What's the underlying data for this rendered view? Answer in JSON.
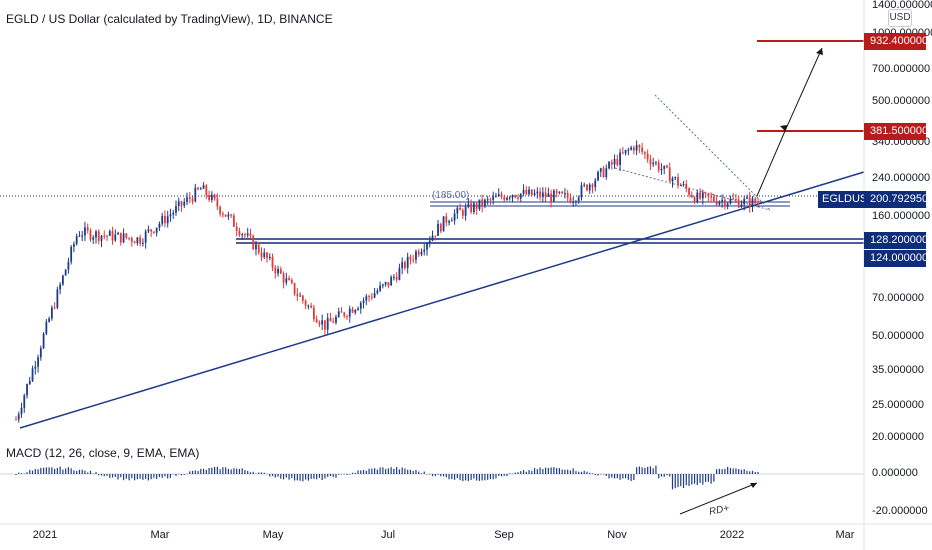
{
  "header": {
    "title": "EGLD / US Dollar (calculated by TradingView), 1D, BINANCE"
  },
  "macd": {
    "title": "MACD (12, 26, close, 9, EMA, EMA)"
  },
  "price_axis": {
    "currency_label": "USD",
    "ticks": [
      "1400.000000",
      "1000.000000",
      "700.000000",
      "500.000000",
      "340.000000",
      "240.000000",
      "160.000000",
      "70.000000",
      "50.000000",
      "35.000000",
      "25.000000",
      "20.000000",
      "0.000000",
      "-20.000000"
    ]
  },
  "labels": {
    "target_high": "932.400000",
    "target_mid": "381.500000",
    "symbol": "EGLDUSD",
    "current_price": "200.792950",
    "support_high": "128.200000",
    "support_low": "124.000000"
  },
  "annotations": {
    "rect_note": "(185.00)",
    "divergence_note": "RD+"
  },
  "time_axis": {
    "ticks": [
      "2021",
      "Mar",
      "May",
      "Jul",
      "Sep",
      "Nov",
      "2022",
      "Mar"
    ]
  },
  "colors": {
    "up_candle": "#1e3a8a",
    "down_candle": "#e53935",
    "trend_line": "#1e3a8a",
    "target_line": "#b71c1c",
    "support_line": "#0d2c7a"
  },
  "chart_data": {
    "type": "candlestick",
    "symbol": "EGLDUSD",
    "timeframe": "1D",
    "exchange": "BINANCE",
    "scale": "log",
    "x": [
      "2021-01",
      "2021-02",
      "2021-03",
      "2021-04",
      "2021-05",
      "2021-06",
      "2021-07",
      "2021-08",
      "2021-09",
      "2021-10",
      "2021-11",
      "2021-12",
      "2022-01"
    ],
    "close_estimate": [
      24,
      150,
      140,
      230,
      120,
      60,
      90,
      175,
      220,
      210,
      350,
      210,
      200
    ],
    "levels": [
      932.4,
      381.5,
      200.79295,
      128.2,
      124.0
    ],
    "ylim": [
      20,
      1400
    ],
    "macd_ylim": [
      -20,
      20
    ]
  }
}
